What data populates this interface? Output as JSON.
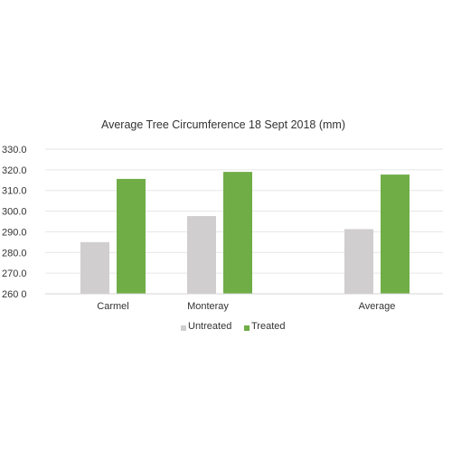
{
  "chart_data": {
    "type": "bar",
    "title": "Average Tree Circumference 18 Sept 2018 (mm)",
    "xlabel": "",
    "ylabel": "",
    "categories": [
      "Carmel",
      "Monteray",
      "Average"
    ],
    "series": [
      {
        "name": "Untreated",
        "color": "#d0cece",
        "values": [
          285.0,
          297.6,
          291.3
        ]
      },
      {
        "name": "Treated",
        "color": "#70ad47",
        "values": [
          315.6,
          319.0,
          317.7
        ]
      }
    ],
    "ylim": [
      260,
      330
    ],
    "yticks": [
      "260 0",
      "270.0",
      "280.0",
      "290.0",
      "300.0",
      "310.0",
      "320.0",
      "330.0"
    ],
    "grid": true,
    "legend_position": "bottom"
  }
}
